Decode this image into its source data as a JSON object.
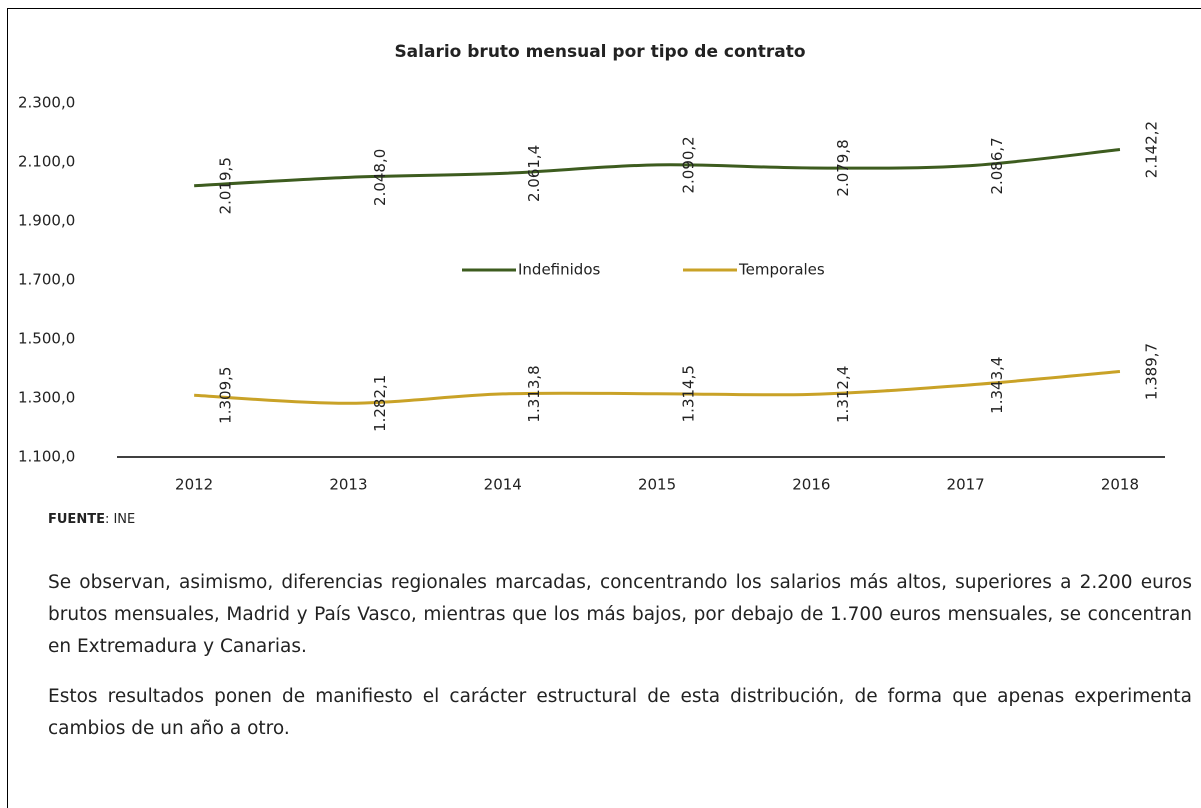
{
  "chart_data": {
    "type": "line",
    "title": "Salario bruto mensual por tipo de contrato",
    "categories": [
      "2012",
      "2013",
      "2014",
      "2015",
      "2016",
      "2017",
      "2018"
    ],
    "series": [
      {
        "name": "Indefinidos",
        "color": "#3d5c1f",
        "values": [
          2019.5,
          2048.0,
          2061.4,
          2090.2,
          2079.8,
          2086.7,
          2142.2
        ],
        "value_labels": [
          "2.019,5",
          "2.048,0",
          "2.061,4",
          "2.090,2",
          "2.079,8",
          "2.086,7",
          "2.142,2"
        ]
      },
      {
        "name": "Temporales",
        "color": "#c9a227",
        "values": [
          1309.5,
          1282.1,
          1313.8,
          1314.5,
          1312.4,
          1343.4,
          1389.7
        ],
        "value_labels": [
          "1.309,5",
          "1.282,1",
          "1.313,8",
          "1.314,5",
          "1.312,4",
          "1.343,4",
          "1.389,7"
        ]
      }
    ],
    "ylim": [
      1100,
      2300
    ],
    "yticks": [
      {
        "value": 1100,
        "label": "1.100,0"
      },
      {
        "value": 1300,
        "label": "1.300,0"
      },
      {
        "value": 1500,
        "label": "1.500,0"
      },
      {
        "value": 1700,
        "label": "1.700,0"
      },
      {
        "value": 1900,
        "label": "1.900,0"
      },
      {
        "value": 2100,
        "label": "2.100,0"
      },
      {
        "value": 2300,
        "label": "2.300,0"
      }
    ],
    "grid": false,
    "legend": "center"
  },
  "source_label": "FUENTE",
  "source_text": ": INE",
  "paragraphs": [
    "Se observan, asimismo, diferencias regionales marcadas, concentrando los salarios más altos, superiores a 2.200 euros brutos mensuales, Madrid y País Vasco, mientras que los más bajos, por debajo de 1.700 euros mensuales, se concentran en Extremadura y Canarias.",
    "Estos resultados ponen de manifiesto el carácter estructural de esta distribución, de forma que apenas experimenta cambios de un año a otro."
  ]
}
